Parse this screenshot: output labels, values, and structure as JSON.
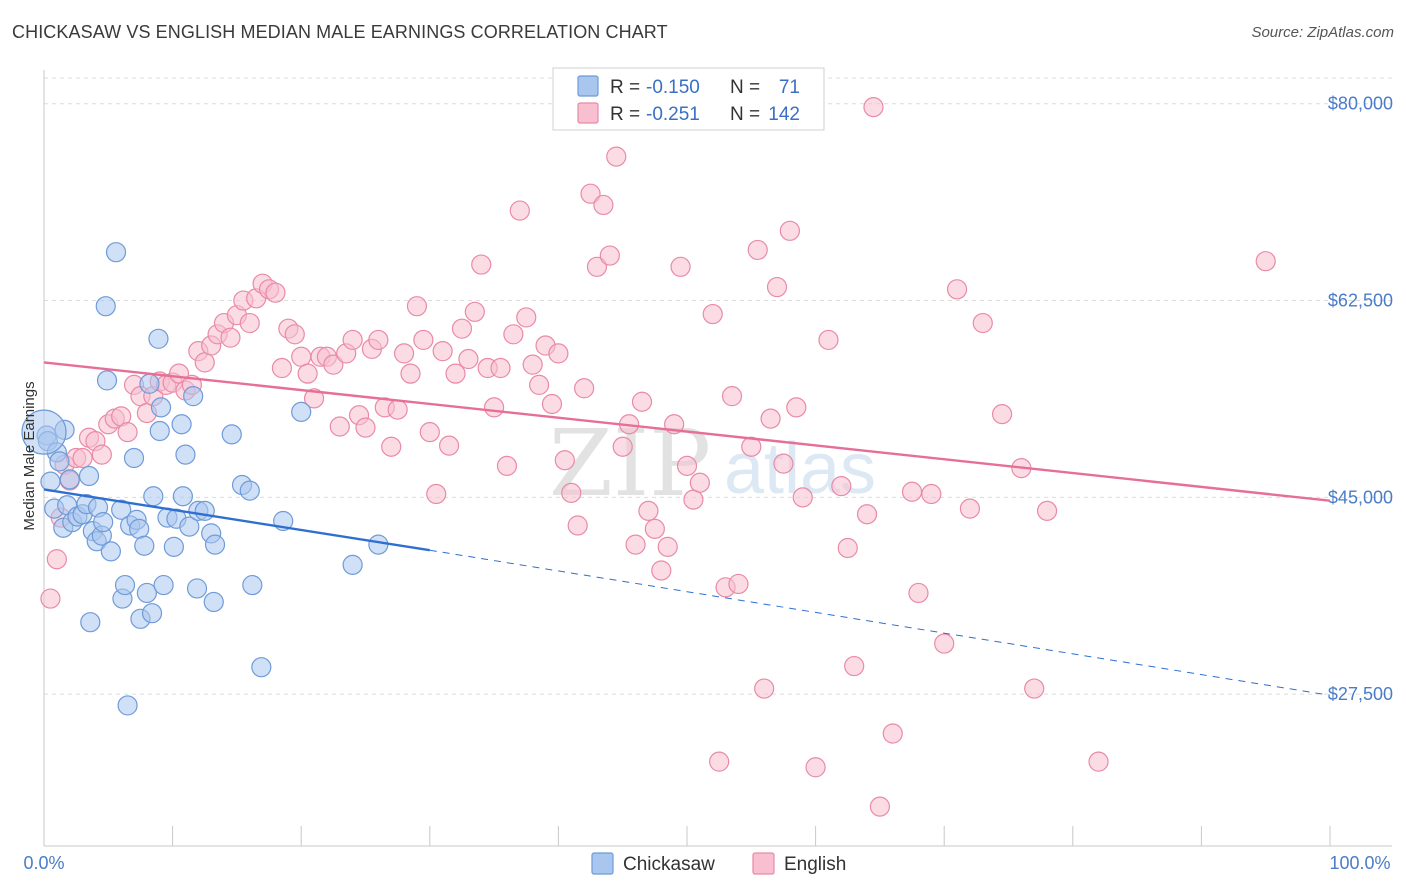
{
  "title": "CHICKASAW VS ENGLISH MEDIAN MALE EARNINGS CORRELATION CHART",
  "source": "Source: ZipAtlas.com",
  "watermark": {
    "zip": "ZIP",
    "atlas": "atlas"
  },
  "colors": {
    "chickasaw_fill": "#a9c6ef",
    "chickasaw_stroke": "#6f9bd8",
    "chickasaw_line": "#2f6fd0",
    "english_fill": "#f7bfd0",
    "english_stroke": "#e98aa8",
    "english_line": "#e66f98",
    "tick_label": "#4a7cc9",
    "grid": "#dcdcdc"
  },
  "legend": {
    "rows": [
      {
        "r_label": "R =",
        "r_value": "-0.150",
        "n_label": "N =",
        "n_value": "71"
      },
      {
        "r_label": "R =",
        "r_value": "-0.251",
        "n_label": "N =",
        "n_value": "142"
      }
    ]
  },
  "chart_data": {
    "type": "scatter",
    "title": "CHICKASAW VS ENGLISH MEDIAN MALE EARNINGS CORRELATION CHART",
    "xlabel": "",
    "ylabel": "Median Male Earnings",
    "xlim": [
      0,
      100
    ],
    "ylim": [
      14000,
      83000
    ],
    "x_tick_labels": [
      "0.0%",
      "100.0%"
    ],
    "y_ticks": [
      27500,
      45000,
      62500,
      80000
    ],
    "y_tick_labels": [
      "$27,500",
      "$45,000",
      "$62,500",
      "$80,000"
    ],
    "legend_placement": "top-center",
    "series": [
      {
        "name": "Chickasaw",
        "r": -0.15,
        "n": 71,
        "trend": {
          "x0": 0,
          "y0": 45700,
          "x1": 30,
          "y1": 40300,
          "dash_x_end": 100,
          "dash_y_end": 27400
        },
        "points": [
          [
            0.2,
            50500
          ],
          [
            0.3,
            50000
          ],
          [
            0.5,
            46400
          ],
          [
            0.8,
            44000
          ],
          [
            1.0,
            49000
          ],
          [
            1.2,
            48200
          ],
          [
            1.5,
            42300
          ],
          [
            1.6,
            51000
          ],
          [
            1.8,
            44300
          ],
          [
            2.0,
            46600
          ],
          [
            2.2,
            42800
          ],
          [
            2.6,
            43300
          ],
          [
            3.0,
            43500
          ],
          [
            3.3,
            44400
          ],
          [
            3.5,
            46900
          ],
          [
            3.6,
            33900
          ],
          [
            3.8,
            42000
          ],
          [
            4.1,
            41100
          ],
          [
            4.2,
            44100
          ],
          [
            4.5,
            41600
          ],
          [
            4.6,
            42800
          ],
          [
            4.8,
            62000
          ],
          [
            4.9,
            55400
          ],
          [
            5.2,
            40200
          ],
          [
            5.6,
            66800
          ],
          [
            6.0,
            43900
          ],
          [
            6.1,
            36000
          ],
          [
            6.3,
            37200
          ],
          [
            6.5,
            26500
          ],
          [
            6.7,
            42500
          ],
          [
            7.0,
            48500
          ],
          [
            7.2,
            43000
          ],
          [
            7.4,
            42200
          ],
          [
            7.5,
            34200
          ],
          [
            7.8,
            40700
          ],
          [
            8.0,
            36500
          ],
          [
            8.2,
            55100
          ],
          [
            8.4,
            34700
          ],
          [
            8.5,
            45100
          ],
          [
            8.9,
            59100
          ],
          [
            9.0,
            50900
          ],
          [
            9.1,
            53000
          ],
          [
            9.3,
            37200
          ],
          [
            9.6,
            43200
          ],
          [
            10.1,
            40600
          ],
          [
            10.3,
            43100
          ],
          [
            10.7,
            51500
          ],
          [
            10.8,
            45100
          ],
          [
            11.0,
            48800
          ],
          [
            11.3,
            42400
          ],
          [
            11.6,
            54000
          ],
          [
            11.9,
            36900
          ],
          [
            12.0,
            43800
          ],
          [
            12.5,
            43800
          ],
          [
            13.0,
            41800
          ],
          [
            13.2,
            35700
          ],
          [
            13.3,
            40800
          ],
          [
            14.6,
            50600
          ],
          [
            15.4,
            46100
          ],
          [
            16.0,
            45600
          ],
          [
            16.2,
            37200
          ],
          [
            16.9,
            29900
          ],
          [
            18.6,
            42900
          ],
          [
            20.0,
            52600
          ],
          [
            24.0,
            39000
          ],
          [
            26.0,
            40800
          ]
        ]
      },
      {
        "name": "English",
        "r": -0.251,
        "n": 142,
        "trend": {
          "x0": 0,
          "y0": 57000,
          "x1": 100,
          "y1": 44700
        },
        "points": [
          [
            0.5,
            36000
          ],
          [
            1.0,
            39500
          ],
          [
            1.3,
            43200
          ],
          [
            1.6,
            47900
          ],
          [
            2.0,
            46500
          ],
          [
            2.5,
            48500
          ],
          [
            3.0,
            48500
          ],
          [
            3.5,
            50300
          ],
          [
            4.0,
            50000
          ],
          [
            4.5,
            48800
          ],
          [
            5.0,
            51500
          ],
          [
            5.5,
            52000
          ],
          [
            6.0,
            52200
          ],
          [
            6.5,
            50800
          ],
          [
            7.0,
            55000
          ],
          [
            7.5,
            54000
          ],
          [
            8.0,
            52500
          ],
          [
            8.5,
            54000
          ],
          [
            9.0,
            55300
          ],
          [
            9.5,
            55000
          ],
          [
            10.0,
            55200
          ],
          [
            10.5,
            56000
          ],
          [
            11.0,
            54500
          ],
          [
            11.5,
            55000
          ],
          [
            12.0,
            58000
          ],
          [
            12.5,
            57000
          ],
          [
            13.0,
            58500
          ],
          [
            13.5,
            59500
          ],
          [
            14.0,
            60500
          ],
          [
            14.5,
            59200
          ],
          [
            15.0,
            61200
          ],
          [
            15.5,
            62500
          ],
          [
            16.0,
            60500
          ],
          [
            16.5,
            62700
          ],
          [
            17.0,
            64000
          ],
          [
            17.5,
            63500
          ],
          [
            18.0,
            63200
          ],
          [
            18.5,
            56500
          ],
          [
            19.0,
            60000
          ],
          [
            19.5,
            59500
          ],
          [
            20.0,
            57500
          ],
          [
            20.5,
            56000
          ],
          [
            21.0,
            53800
          ],
          [
            21.5,
            57500
          ],
          [
            22.0,
            57500
          ],
          [
            22.5,
            56800
          ],
          [
            23.0,
            51300
          ],
          [
            23.5,
            57800
          ],
          [
            24.0,
            59000
          ],
          [
            24.5,
            52300
          ],
          [
            25.0,
            51200
          ],
          [
            25.5,
            58200
          ],
          [
            26.0,
            59000
          ],
          [
            26.5,
            53000
          ],
          [
            27.0,
            49500
          ],
          [
            27.5,
            52800
          ],
          [
            28.0,
            57800
          ],
          [
            28.5,
            56000
          ],
          [
            29.0,
            62000
          ],
          [
            29.5,
            59000
          ],
          [
            30.0,
            50800
          ],
          [
            30.5,
            45300
          ],
          [
            31.0,
            58000
          ],
          [
            31.5,
            49600
          ],
          [
            32.0,
            56000
          ],
          [
            32.5,
            60000
          ],
          [
            33.0,
            57300
          ],
          [
            33.5,
            61500
          ],
          [
            34.0,
            65700
          ],
          [
            34.5,
            56500
          ],
          [
            35.0,
            53000
          ],
          [
            35.5,
            56500
          ],
          [
            36.0,
            47800
          ],
          [
            36.5,
            59500
          ],
          [
            37.0,
            70500
          ],
          [
            37.5,
            61000
          ],
          [
            38.0,
            56800
          ],
          [
            38.5,
            55000
          ],
          [
            39.0,
            58500
          ],
          [
            39.5,
            53300
          ],
          [
            40.0,
            57800
          ],
          [
            40.5,
            48300
          ],
          [
            41.0,
            45400
          ],
          [
            41.5,
            42500
          ],
          [
            42.0,
            54700
          ],
          [
            42.5,
            72000
          ],
          [
            43.0,
            65500
          ],
          [
            43.5,
            71000
          ],
          [
            44.0,
            66500
          ],
          [
            44.5,
            75300
          ],
          [
            45.0,
            49500
          ],
          [
            45.5,
            51500
          ],
          [
            46.0,
            40800
          ],
          [
            46.5,
            53500
          ],
          [
            47.0,
            43800
          ],
          [
            47.5,
            42200
          ],
          [
            48.0,
            38500
          ],
          [
            48.5,
            40600
          ],
          [
            49.0,
            51500
          ],
          [
            49.5,
            65500
          ],
          [
            50.0,
            47800
          ],
          [
            50.5,
            44800
          ],
          [
            51.0,
            46300
          ],
          [
            52.0,
            61300
          ],
          [
            52.5,
            21500
          ],
          [
            53.0,
            37000
          ],
          [
            53.5,
            54000
          ],
          [
            54.0,
            37300
          ],
          [
            55.0,
            49500
          ],
          [
            55.5,
            67000
          ],
          [
            56.0,
            28000
          ],
          [
            56.5,
            52000
          ],
          [
            57.0,
            63700
          ],
          [
            57.5,
            48000
          ],
          [
            58.0,
            68700
          ],
          [
            58.5,
            53000
          ],
          [
            59.0,
            45000
          ],
          [
            60.0,
            21000
          ],
          [
            61.0,
            59000
          ],
          [
            62.0,
            46000
          ],
          [
            62.5,
            40500
          ],
          [
            63.0,
            30000
          ],
          [
            64.0,
            43500
          ],
          [
            64.5,
            79700
          ],
          [
            65.0,
            17500
          ],
          [
            66.0,
            24000
          ],
          [
            67.5,
            45500
          ],
          [
            68.0,
            36500
          ],
          [
            69.0,
            45300
          ],
          [
            70.0,
            32000
          ],
          [
            71.0,
            63500
          ],
          [
            72.0,
            44000
          ],
          [
            73.0,
            60500
          ],
          [
            74.5,
            52400
          ],
          [
            76.0,
            47600
          ],
          [
            77.0,
            28000
          ],
          [
            78.0,
            43800
          ],
          [
            82.0,
            21500
          ],
          [
            95.0,
            66000
          ]
        ]
      }
    ]
  },
  "bottom_legend": [
    {
      "label": "Chickasaw"
    },
    {
      "label": "English"
    }
  ]
}
